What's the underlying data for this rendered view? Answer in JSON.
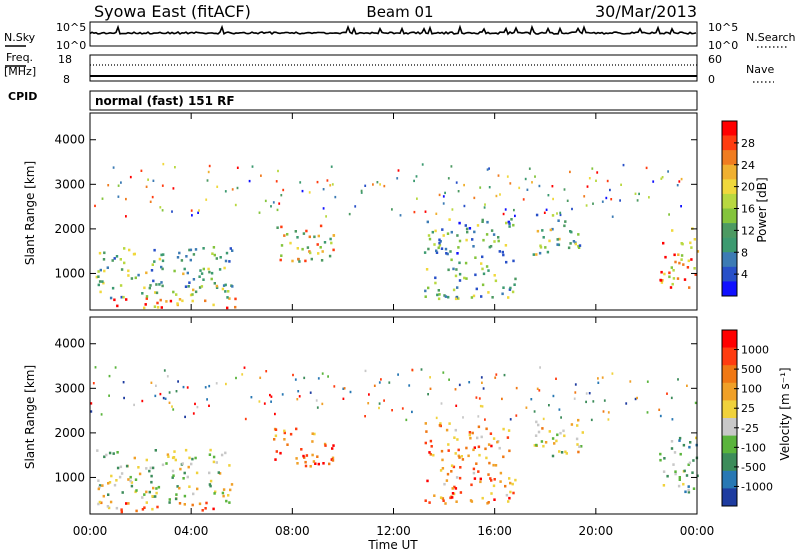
{
  "header": {
    "station": "Syowa East (fitACF)",
    "beam": "Beam 01",
    "date": "30/Mar/2013"
  },
  "aux_panels": {
    "nsky_label": "N.Sky",
    "nsky_ticks": [
      "10^5",
      "10^0"
    ],
    "nsearch_label": "N.Search",
    "nsearch_ticks": [
      "10^5",
      "10^0"
    ],
    "freq_label_1": "Freq.",
    "freq_label_2": "[MHz]",
    "freq_ticks": [
      "18",
      "8"
    ],
    "nave_label": "Nave",
    "nave_ticks": [
      "60",
      "0"
    ],
    "cpid_label": "CPID",
    "cpid_value": "normal (fast) 151 RF"
  },
  "chart_data": [
    {
      "type": "heatmap",
      "title": "",
      "xlabel": "Time UT",
      "ylabel": "Slant Range [km]",
      "x_ticks": [
        "00:00",
        "04:00",
        "08:00",
        "12:00",
        "16:00",
        "20:00",
        "00:00"
      ],
      "y_ticks": [
        "1000",
        "2000",
        "3000",
        "4000"
      ],
      "ylim": [
        180,
        4600
      ],
      "colorbar": {
        "label": "Power [dB]",
        "ticks": [
          "4",
          "8",
          "12",
          "16",
          "20",
          "24",
          "28"
        ],
        "colors": [
          "#1010ff",
          "#2850c8",
          "#3c7bb4",
          "#3c9a70",
          "#4c9a62",
          "#84c43c",
          "#b8d840",
          "#f0d83c",
          "#f0b030",
          "#f07c20",
          "#ff3c10",
          "#ff0000"
        ]
      },
      "echo_regions": [
        {
          "t0": 0.0,
          "t1": 5.8,
          "r0": 200,
          "r1": 420,
          "level": 0.85
        },
        {
          "t0": 0.2,
          "t1": 5.6,
          "r0": 420,
          "r1": 1600,
          "level": 0.4
        },
        {
          "t0": 7.2,
          "t1": 9.6,
          "r0": 1200,
          "r1": 2100,
          "level": 0.6
        },
        {
          "t0": 13.2,
          "t1": 16.8,
          "r0": 400,
          "r1": 2200,
          "level": 0.35
        },
        {
          "t0": 17.5,
          "t1": 19.5,
          "r0": 1400,
          "r1": 2300,
          "level": 0.4
        },
        {
          "t0": 22.5,
          "t1": 24.0,
          "r0": 600,
          "r1": 2000,
          "level": 0.75
        }
      ]
    },
    {
      "type": "heatmap",
      "title": "",
      "xlabel": "Time UT",
      "ylabel": "Slant Range [km]",
      "x_ticks": [
        "00:00",
        "04:00",
        "08:00",
        "12:00",
        "16:00",
        "20:00",
        "00:00"
      ],
      "y_ticks": [
        "1000",
        "2000",
        "3000",
        "4000"
      ],
      "ylim": [
        180,
        4600
      ],
      "colorbar": {
        "label": "Velocity [m s⁻¹]",
        "ticks": [
          "1000",
          "500",
          "100",
          "25",
          "-25",
          "-100",
          "-500",
          "-1000"
        ],
        "colors": [
          "#1e3ca0",
          "#2878b4",
          "#3c8c5a",
          "#5ab43c",
          "#c8c8c8",
          "#f0d23c",
          "#f0a028",
          "#f07814",
          "#ff3c10",
          "#ff0000"
        ]
      },
      "echo_regions": [
        {
          "t0": 0.0,
          "t1": 5.8,
          "r0": 200,
          "r1": 420,
          "level": 0.7
        },
        {
          "t0": 0.2,
          "t1": 5.6,
          "r0": 420,
          "r1": 1600,
          "level": 0.45
        },
        {
          "t0": 7.2,
          "t1": 9.6,
          "r0": 1200,
          "r1": 2100,
          "level": 0.8
        },
        {
          "t0": 13.2,
          "t1": 16.8,
          "r0": 400,
          "r1": 2200,
          "level": 0.7
        },
        {
          "t0": 17.5,
          "t1": 19.5,
          "r0": 1400,
          "r1": 2300,
          "level": 0.5
        },
        {
          "t0": 22.5,
          "t1": 24.0,
          "r0": 600,
          "r1": 2000,
          "level": 0.35
        }
      ]
    }
  ]
}
